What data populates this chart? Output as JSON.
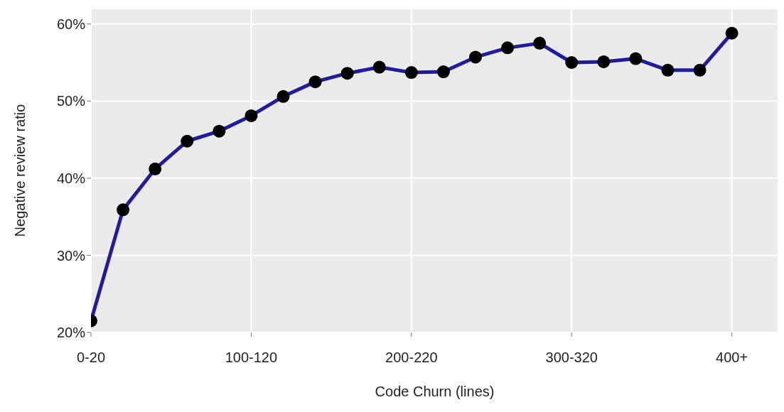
{
  "chart_data": {
    "type": "line",
    "xlabel": "Code Churn (lines)",
    "ylabel": "Negative review ratio",
    "categories": [
      "0-20",
      null,
      null,
      null,
      null,
      "100-120",
      null,
      null,
      null,
      null,
      "200-220",
      null,
      null,
      null,
      null,
      "300-320",
      null,
      null,
      null,
      null,
      "400+"
    ],
    "series": [
      {
        "color": "#221c9c",
        "values": [
          21.5,
          35.9,
          41.2,
          44.8,
          46.1,
          48.1,
          50.6,
          52.5,
          53.6,
          54.4,
          53.7,
          53.8,
          55.7,
          56.9,
          57.5,
          55.0,
          55.1,
          55.5,
          54.0,
          54.0,
          58.8
        ]
      }
    ],
    "ylim": [
      20,
      62
    ],
    "yticks": [
      {
        "value": 20,
        "label": "20%"
      },
      {
        "value": 30,
        "label": "30%"
      },
      {
        "value": 40,
        "label": "40%"
      },
      {
        "value": 50,
        "label": "50%"
      },
      {
        "value": 60,
        "label": "60%"
      }
    ],
    "grid": true,
    "marker": "circle",
    "line_style": "solid"
  }
}
